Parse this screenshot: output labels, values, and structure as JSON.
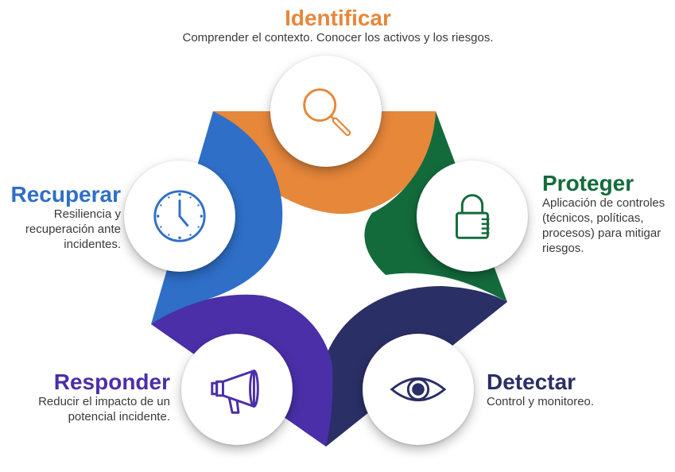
{
  "colors": {
    "identificar": "#e7873a",
    "proteger": "#136b3c",
    "detectar": "#2a2f66",
    "responder": "#4a2fa8",
    "recuperar": "#2f6fc7"
  },
  "steps": {
    "identificar": {
      "title": "Identificar",
      "description": "Comprender el contexto. Conocer los activos y los riesgos.",
      "icon": "magnifier-icon"
    },
    "proteger": {
      "title": "Proteger",
      "description": "Aplicación de controles (técnicos, políticas, procesos) para mitigar riesgos.",
      "icon": "padlock-icon"
    },
    "detectar": {
      "title": "Detectar",
      "description": "Control y monitoreo.",
      "icon": "eye-icon"
    },
    "responder": {
      "title": "Responder",
      "description": "Reducir el impacto de un potencial incidente.",
      "icon": "megaphone-icon"
    },
    "recuperar": {
      "title": "Recuperar",
      "description": "Resiliencia y recuperación ante incidentes.",
      "icon": "clock-icon"
    }
  }
}
